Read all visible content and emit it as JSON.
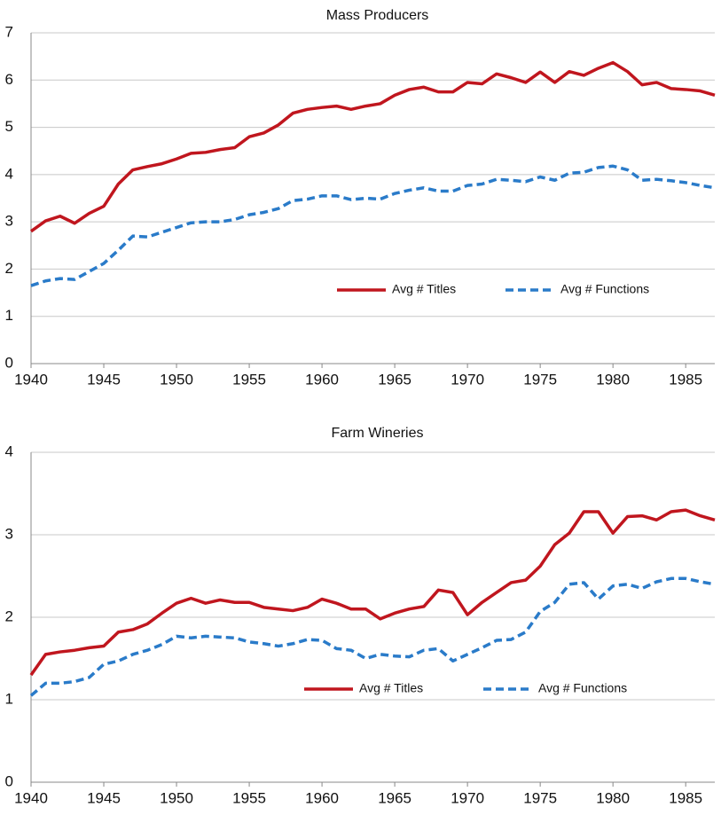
{
  "chart_data": [
    {
      "type": "line",
      "title": "Mass Producers",
      "x": [
        1940,
        1941,
        1942,
        1943,
        1944,
        1945,
        1946,
        1947,
        1948,
        1949,
        1950,
        1951,
        1952,
        1953,
        1954,
        1955,
        1956,
        1957,
        1958,
        1959,
        1960,
        1961,
        1962,
        1963,
        1964,
        1965,
        1966,
        1967,
        1968,
        1969,
        1970,
        1971,
        1972,
        1973,
        1974,
        1975,
        1976,
        1977,
        1978,
        1979,
        1980,
        1981,
        1982,
        1983,
        1984,
        1985,
        1986,
        1987
      ],
      "series": [
        {
          "name": "Avg # Titles",
          "color": "#c0161e",
          "linestyle": "solid",
          "values": [
            2.8,
            3.02,
            3.12,
            2.97,
            3.18,
            3.33,
            3.8,
            4.1,
            4.17,
            4.23,
            4.33,
            4.45,
            4.47,
            4.53,
            4.57,
            4.8,
            4.88,
            5.05,
            5.3,
            5.38,
            5.42,
            5.45,
            5.38,
            5.45,
            5.5,
            5.68,
            5.8,
            5.85,
            5.75,
            5.75,
            5.95,
            5.92,
            6.13,
            6.05,
            5.95,
            6.17,
            5.95,
            6.18,
            6.1,
            6.25,
            6.37,
            6.18,
            5.9,
            5.95,
            5.82,
            5.8,
            5.77,
            5.68
          ]
        },
        {
          "name": "Avg # Functions",
          "color": "#2a7bc9",
          "linestyle": "dashed",
          "values": [
            1.65,
            1.75,
            1.8,
            1.78,
            1.95,
            2.12,
            2.4,
            2.7,
            2.68,
            2.78,
            2.88,
            2.98,
            3.0,
            3.0,
            3.05,
            3.15,
            3.2,
            3.28,
            3.45,
            3.48,
            3.55,
            3.55,
            3.47,
            3.5,
            3.48,
            3.6,
            3.67,
            3.72,
            3.65,
            3.65,
            3.77,
            3.8,
            3.9,
            3.88,
            3.85,
            3.95,
            3.88,
            4.03,
            4.05,
            4.15,
            4.18,
            4.1,
            3.88,
            3.9,
            3.87,
            3.83,
            3.77,
            3.72
          ]
        }
      ],
      "xlim": [
        1940,
        1987
      ],
      "xticks": [
        1940,
        1945,
        1950,
        1955,
        1960,
        1965,
        1970,
        1975,
        1980,
        1985
      ],
      "ylim": [
        0,
        7
      ],
      "yticks": [
        0,
        1,
        2,
        3,
        4,
        5,
        6,
        7
      ],
      "grid": true,
      "legend": "lower right"
    },
    {
      "type": "line",
      "title": "Farm Wineries",
      "x": [
        1940,
        1941,
        1942,
        1943,
        1944,
        1945,
        1946,
        1947,
        1948,
        1949,
        1950,
        1951,
        1952,
        1953,
        1954,
        1955,
        1956,
        1957,
        1958,
        1959,
        1960,
        1961,
        1962,
        1963,
        1964,
        1965,
        1966,
        1967,
        1968,
        1969,
        1970,
        1971,
        1972,
        1973,
        1974,
        1975,
        1976,
        1977,
        1978,
        1979,
        1980,
        1981,
        1982,
        1983,
        1984,
        1985,
        1986,
        1987
      ],
      "series": [
        {
          "name": "Avg # Titles",
          "color": "#c0161e",
          "linestyle": "solid",
          "values": [
            1.3,
            1.55,
            1.58,
            1.6,
            1.63,
            1.65,
            1.82,
            1.85,
            1.92,
            2.05,
            2.17,
            2.23,
            2.17,
            2.21,
            2.18,
            2.18,
            2.12,
            2.1,
            2.08,
            2.12,
            2.22,
            2.17,
            2.1,
            2.1,
            1.98,
            2.05,
            2.1,
            2.13,
            2.33,
            2.3,
            2.03,
            2.18,
            2.3,
            2.42,
            2.45,
            2.62,
            2.88,
            3.02,
            3.28,
            3.28,
            3.02,
            3.22,
            3.23,
            3.18,
            3.28,
            3.3,
            3.23,
            3.18
          ]
        },
        {
          "name": "Avg # Functions",
          "color": "#2a7bc9",
          "linestyle": "dashed",
          "values": [
            1.05,
            1.2,
            1.2,
            1.22,
            1.27,
            1.43,
            1.47,
            1.55,
            1.6,
            1.67,
            1.77,
            1.75,
            1.77,
            1.76,
            1.75,
            1.7,
            1.68,
            1.65,
            1.68,
            1.73,
            1.72,
            1.62,
            1.6,
            1.5,
            1.55,
            1.53,
            1.52,
            1.6,
            1.62,
            1.47,
            1.55,
            1.63,
            1.72,
            1.73,
            1.82,
            2.07,
            2.18,
            2.4,
            2.42,
            2.22,
            2.38,
            2.4,
            2.35,
            2.43,
            2.47,
            2.47,
            2.43,
            2.4
          ]
        }
      ],
      "xlim": [
        1940,
        1987
      ],
      "xticks": [
        1940,
        1945,
        1950,
        1955,
        1960,
        1965,
        1970,
        1975,
        1980,
        1985
      ],
      "ylim": [
        0,
        4
      ],
      "yticks": [
        0,
        1,
        2,
        3,
        4
      ],
      "grid": true,
      "legend": "lower right"
    }
  ]
}
